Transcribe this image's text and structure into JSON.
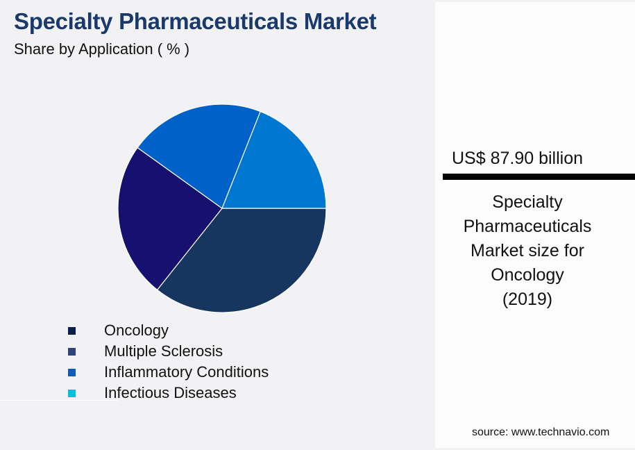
{
  "header": {
    "title": "Specialty Pharmaceuticals Market",
    "subtitle": "Share by Application ( % )"
  },
  "legend": [
    {
      "label": "Oncology",
      "color": "#0C1E4A"
    },
    {
      "label": "Multiple Sclerosis",
      "color": "#2C4478"
    },
    {
      "label": "Inflammatory Conditions",
      "color": "#0F5BB5"
    },
    {
      "label": "Infectious Diseases",
      "color": "#00C0E0"
    }
  ],
  "panel": {
    "value": "US$ 87.90 billion",
    "description_lines": [
      "Specialty",
      "Pharmaceuticals",
      "Market size for",
      "Oncology",
      "(2019)"
    ]
  },
  "source": "source: www.technavio.com",
  "chart_data": {
    "type": "pie",
    "title": "Specialty Pharmaceuticals Market",
    "subtitle": "Share by Application ( % )",
    "categories": [
      "Oncology",
      "Multiple Sclerosis",
      "Inflammatory Conditions",
      "Infectious Diseases"
    ],
    "values": [
      35.7,
      24.2,
      21.1,
      19.0
    ],
    "colors": [
      "#17365F",
      "#16106F",
      "#0062C8",
      "#0077D0"
    ],
    "start_angle_deg": 0,
    "direction": "clockwise",
    "legend_position": "bottom",
    "annotation": "US$ 87.90 billion — Specialty Pharmaceuticals Market size for Oncology (2019)"
  }
}
